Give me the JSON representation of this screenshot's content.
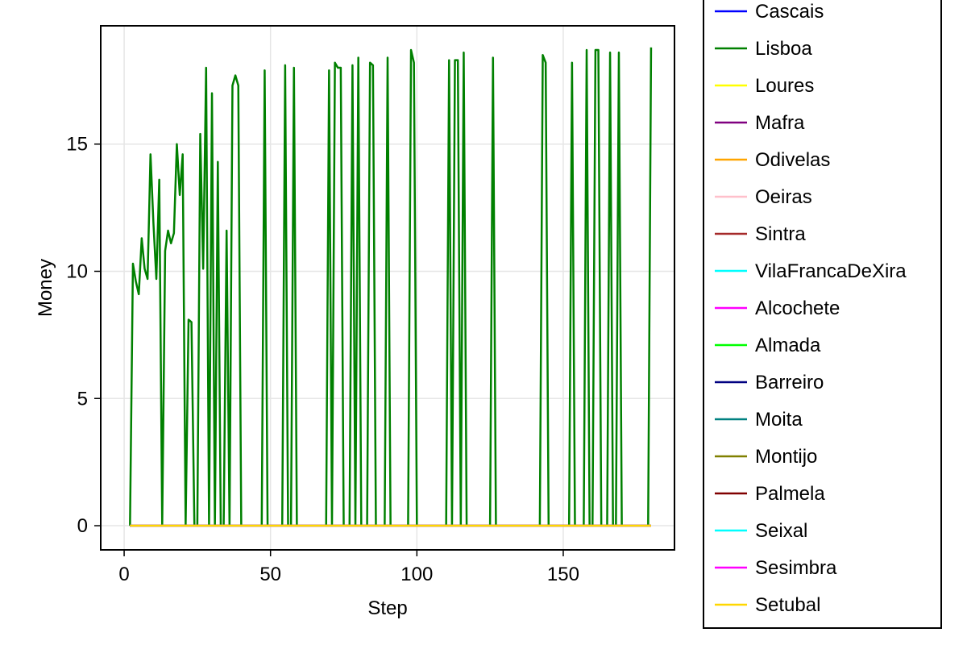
{
  "chart_data": {
    "type": "line",
    "xlabel": "Step",
    "ylabel": "Money",
    "xlim": [
      -8,
      188
    ],
    "ylim": [
      -0.95,
      19.65
    ],
    "xticks": [
      0,
      50,
      100,
      150
    ],
    "yticks": [
      0,
      5,
      10,
      15
    ],
    "grid": true,
    "legend_placement": "right (outside plot)",
    "x": [
      2,
      3,
      4,
      5,
      6,
      7,
      8,
      9,
      10,
      11,
      12,
      13,
      14,
      15,
      16,
      17,
      18,
      19,
      20,
      21,
      22,
      23,
      24,
      25,
      26,
      27,
      28,
      29,
      30,
      31,
      32,
      33,
      34,
      35,
      36,
      37,
      38,
      39,
      40,
      41,
      42,
      43,
      44,
      45,
      46,
      47,
      48,
      49,
      50,
      51,
      52,
      53,
      54,
      55,
      56,
      57,
      58,
      59,
      60,
      61,
      62,
      63,
      64,
      65,
      66,
      67,
      68,
      69,
      70,
      71,
      72,
      73,
      74,
      75,
      76,
      77,
      78,
      79,
      80,
      81,
      82,
      83,
      84,
      85,
      86,
      87,
      88,
      89,
      90,
      91,
      92,
      93,
      94,
      95,
      96,
      97,
      98,
      99,
      100,
      101,
      102,
      103,
      104,
      105,
      106,
      107,
      108,
      109,
      110,
      111,
      112,
      113,
      114,
      115,
      116,
      117,
      118,
      119,
      120,
      121,
      122,
      123,
      124,
      125,
      126,
      127,
      128,
      129,
      130,
      131,
      132,
      133,
      134,
      135,
      136,
      137,
      138,
      139,
      140,
      141,
      142,
      143,
      144,
      145,
      146,
      147,
      148,
      149,
      150,
      151,
      152,
      153,
      154,
      155,
      156,
      157,
      158,
      159,
      160,
      161,
      162,
      163,
      164,
      165,
      166,
      167,
      168,
      169,
      170,
      171,
      172,
      173,
      174,
      175,
      176,
      177,
      178,
      179,
      180
    ],
    "series": [
      {
        "name": "Cascais",
        "color": "#0000ff",
        "values": "zeros"
      },
      {
        "name": "Lisboa",
        "color": "#008000",
        "values": [
          0,
          10.3,
          9.6,
          9.1,
          11.3,
          10.1,
          9.7,
          14.6,
          11.9,
          9.7,
          13.6,
          0,
          10.8,
          11.6,
          11.1,
          11.5,
          15.0,
          13.0,
          14.6,
          0,
          8.1,
          8.0,
          0,
          0,
          15.4,
          10.1,
          18.0,
          0,
          17.0,
          0,
          14.3,
          0,
          0,
          11.6,
          0,
          17.3,
          17.7,
          17.3,
          0,
          0,
          0,
          0,
          0,
          0,
          0,
          0,
          17.9,
          0,
          0,
          0,
          0,
          0,
          0,
          18.1,
          0,
          0,
          18.0,
          0,
          0,
          0,
          0,
          0,
          0,
          0,
          0,
          0,
          0,
          0,
          17.9,
          0,
          18.2,
          18.0,
          18.0,
          0,
          0,
          0,
          18.1,
          0,
          18.4,
          0,
          0,
          0,
          18.2,
          18.1,
          0,
          0,
          0,
          0,
          18.4,
          0,
          0,
          0,
          0,
          0,
          0,
          0,
          18.7,
          18.2,
          0,
          0,
          0,
          0,
          0,
          0,
          0,
          0,
          0,
          0,
          0,
          18.3,
          0,
          18.3,
          18.3,
          0,
          18.6,
          0,
          0,
          0,
          0,
          0,
          0,
          0,
          0,
          0,
          18.4,
          0,
          0,
          0,
          0,
          0,
          0,
          0,
          0,
          0,
          0,
          0,
          0,
          0,
          0,
          0,
          0,
          18.5,
          18.2,
          0,
          0,
          0,
          0,
          0,
          0,
          0,
          0,
          18.2,
          0,
          0,
          0,
          0,
          18.7,
          0,
          0,
          18.7,
          18.7,
          0,
          0,
          0,
          18.6,
          0,
          0,
          18.6,
          0,
          0,
          0,
          0,
          0,
          0,
          0,
          0,
          0,
          0,
          18.8
        ]
      },
      {
        "name": "Loures",
        "color": "#ffff00",
        "values": "zeros"
      },
      {
        "name": "Mafra",
        "color": "#800080",
        "values": "zeros"
      },
      {
        "name": "Odivelas",
        "color": "#ffa500",
        "values": "zeros"
      },
      {
        "name": "Oeiras",
        "color": "#ffc0cb",
        "values": "zeros"
      },
      {
        "name": "Sintra",
        "color": "#a52a2a",
        "values": "zeros"
      },
      {
        "name": "VilaFrancaDeXira",
        "color": "#00ffff",
        "values": "zeros"
      },
      {
        "name": "Alcochete",
        "color": "#ff00ff",
        "values": "zeros"
      },
      {
        "name": "Almada",
        "color": "#00ff00",
        "values": "zeros"
      },
      {
        "name": "Barreiro",
        "color": "#000080",
        "values": "zeros"
      },
      {
        "name": "Moita",
        "color": "#008080",
        "values": "zeros"
      },
      {
        "name": "Montijo",
        "color": "#808000",
        "values": "zeros"
      },
      {
        "name": "Palmela",
        "color": "#800000",
        "values": "zeros"
      },
      {
        "name": "Seixal",
        "color": "#00ffff",
        "values": "zeros"
      },
      {
        "name": "Sesimbra",
        "color": "#ff00ff",
        "values": "zeros"
      },
      {
        "name": "Setubal",
        "color": "#ffd700",
        "values": "zeros"
      }
    ]
  }
}
